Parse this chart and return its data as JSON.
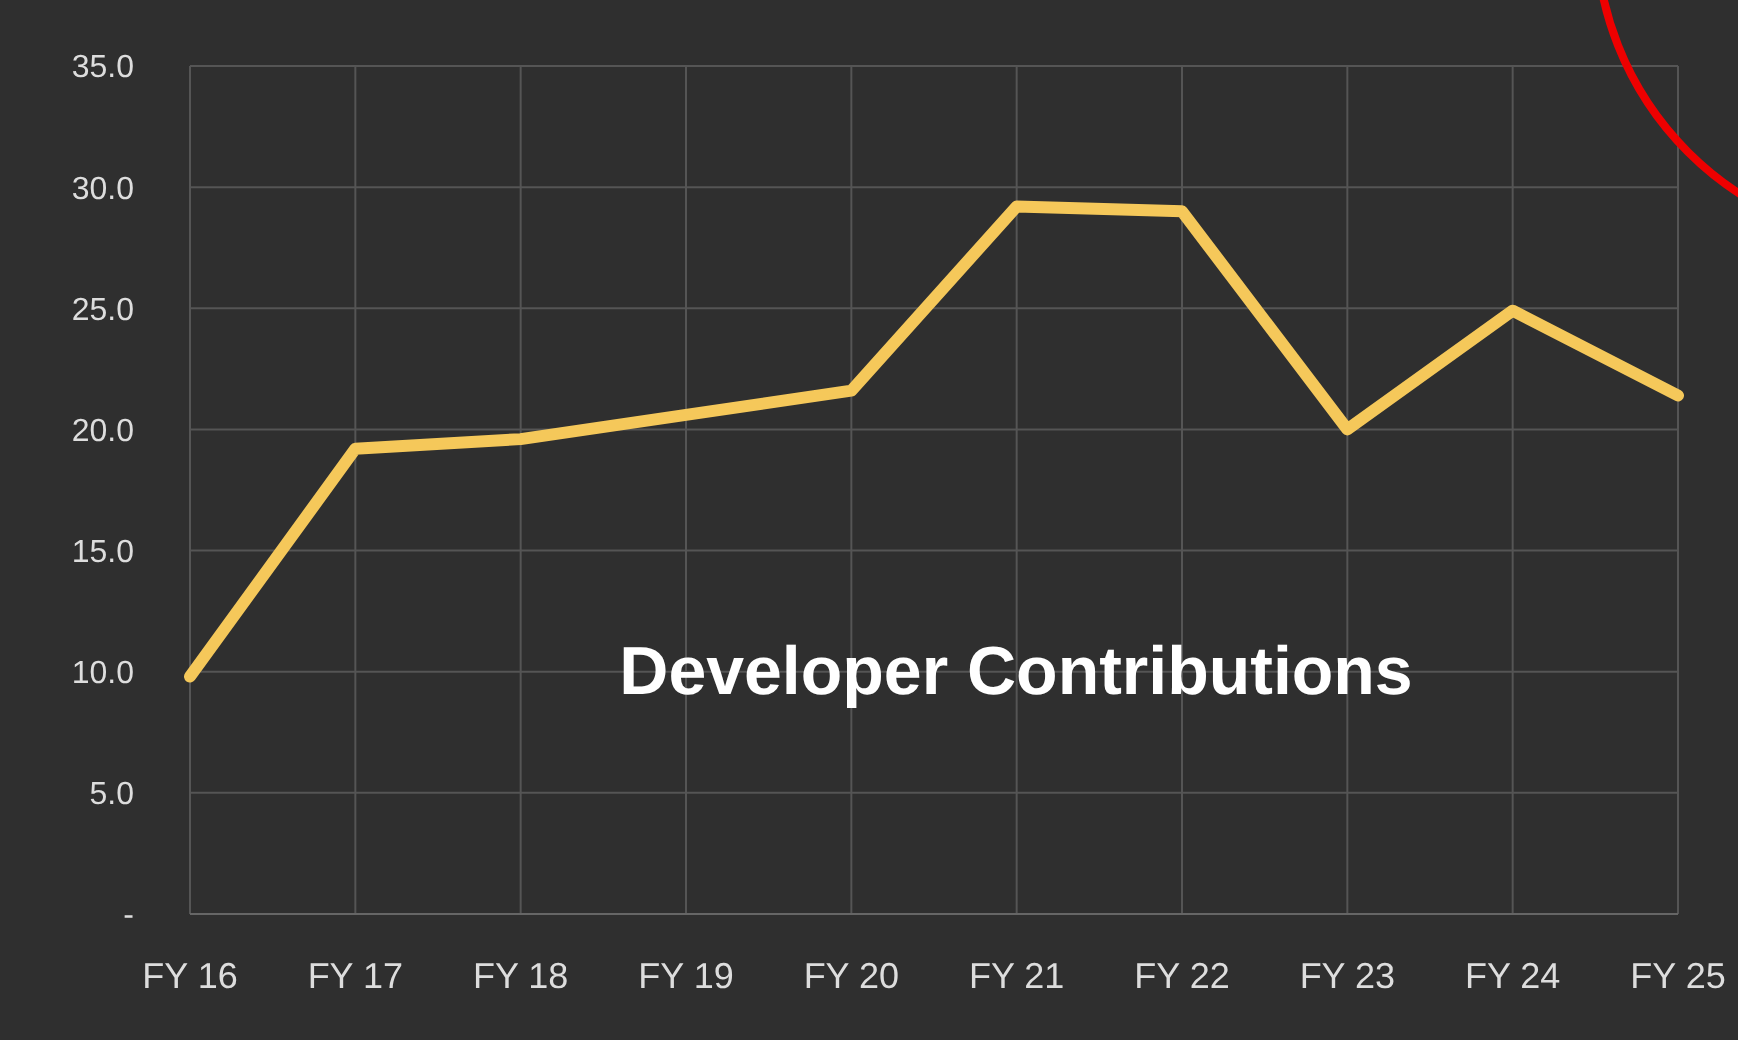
{
  "chart_data": {
    "type": "line",
    "title": "Developer Contributions",
    "categories": [
      "FY 16",
      "FY 17",
      "FY 18",
      "FY 19",
      "FY 20",
      "FY 21",
      "FY 22",
      "FY 23",
      "FY 24",
      "FY 25"
    ],
    "series": [
      {
        "color": "#f5c85a",
        "values": [
          9.8,
          19.2,
          19.6,
          20.6,
          21.6,
          29.2,
          29.0,
          20.0,
          24.9,
          21.4
        ]
      }
    ],
    "ylim": [
      0,
      35
    ],
    "yticks": [
      {
        "value": 0,
        "label": "-"
      },
      {
        "value": 5,
        "label": "5.0"
      },
      {
        "value": 10,
        "label": "10.0"
      },
      {
        "value": 15,
        "label": "15.0"
      },
      {
        "value": 20,
        "label": "20.0"
      },
      {
        "value": 25,
        "label": "25.0"
      },
      {
        "value": 30,
        "label": "30.0"
      },
      {
        "value": 35,
        "label": "35.0"
      }
    ],
    "grid": true,
    "marker": "none",
    "line_style": "solid"
  }
}
